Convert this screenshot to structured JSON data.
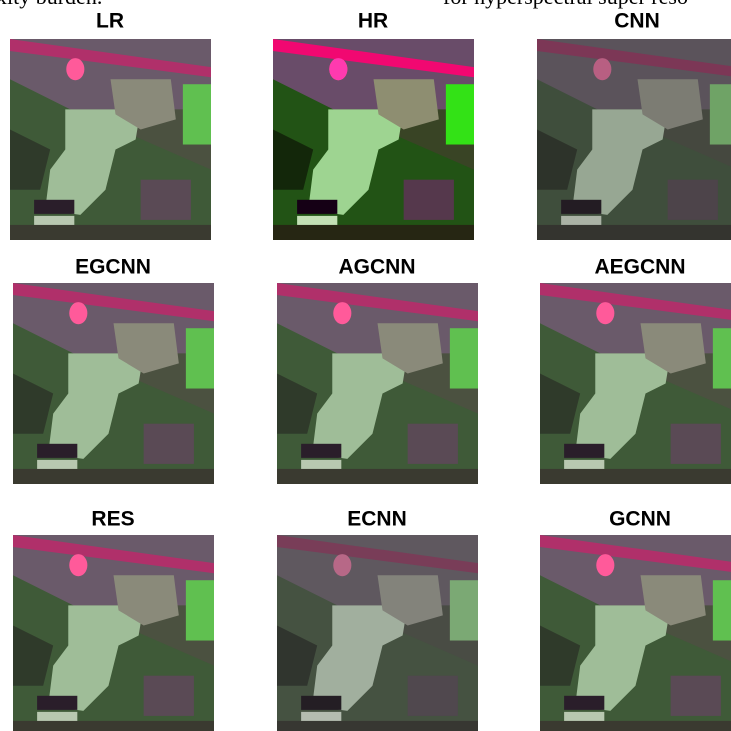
{
  "header": {
    "left": "xity burden.",
    "right": "for hyperspectral super reso"
  },
  "panels": [
    {
      "label": "LR"
    },
    {
      "label": "HR"
    },
    {
      "label": "CNN"
    },
    {
      "label": "EGCNN"
    },
    {
      "label": "AGCNN"
    },
    {
      "label": "AEGCNN"
    },
    {
      "label": "RES"
    },
    {
      "label": "ECNN"
    },
    {
      "label": "GCNN"
    }
  ]
}
